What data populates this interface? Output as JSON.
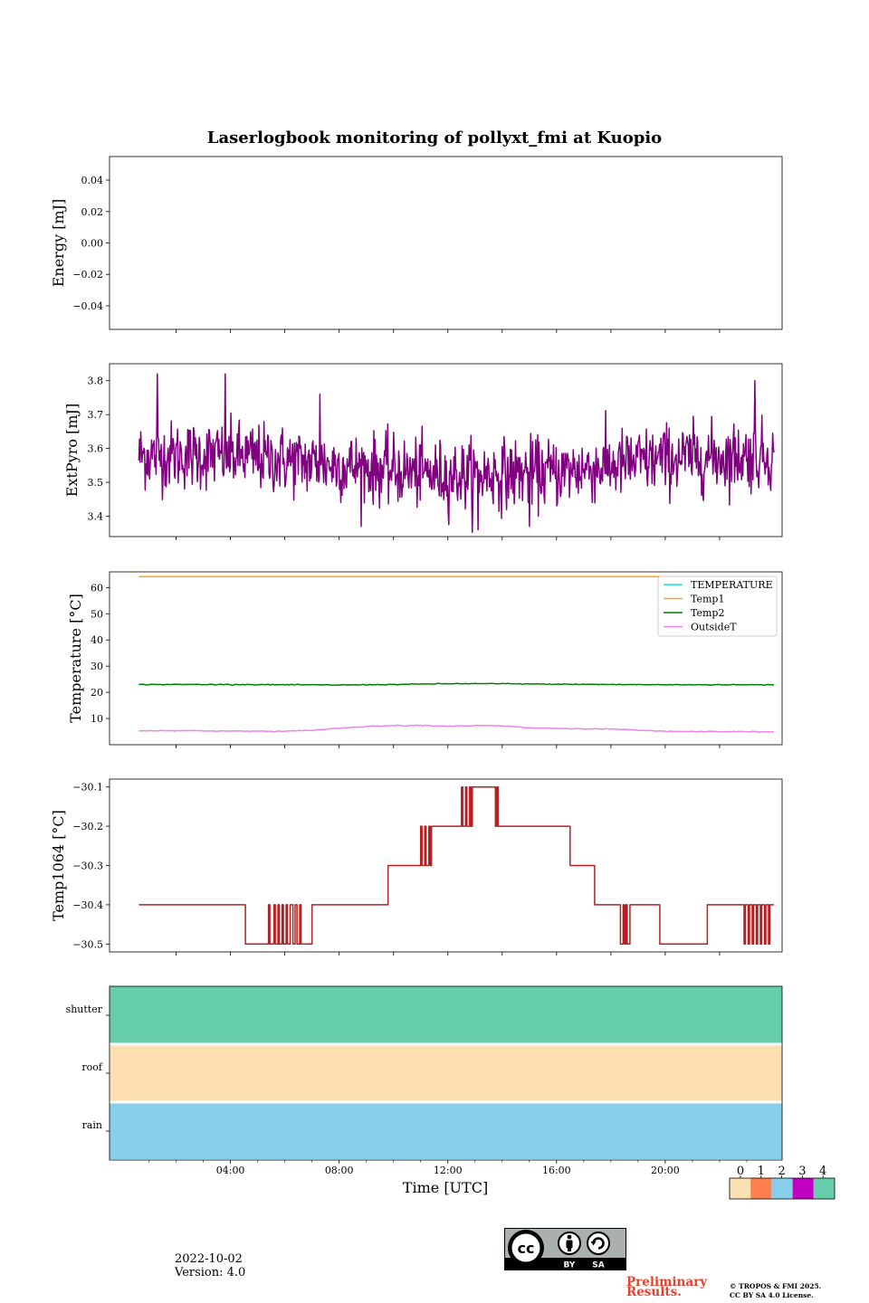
{
  "chart_data": {
    "type": "line",
    "title": "Laserlogbook monitoring of pollyxt_fmi at Kuopio",
    "xlabel": "Time [UTC]",
    "xlim_hours": [
      -0.45,
      24.3
    ],
    "data_x_range_hours": [
      0.63,
      24.0
    ],
    "x_ticks": [
      {
        "h": 4,
        "label": "04:00"
      },
      {
        "h": 8,
        "label": "08:00"
      },
      {
        "h": 12,
        "label": "12:00"
      },
      {
        "h": 16,
        "label": "16:00"
      },
      {
        "h": 20,
        "label": "20:00"
      }
    ],
    "panels": [
      {
        "id": "energy",
        "ylabel": "Energy [mJ]",
        "ylim": [
          -0.055,
          0.055
        ],
        "yticks": [
          -0.04,
          -0.02,
          0.0,
          0.02,
          0.04
        ],
        "ytick_labels": [
          "−0.04",
          "−0.02",
          "0.00",
          "0.02",
          "0.04"
        ],
        "series": []
      },
      {
        "id": "extpyro",
        "ylabel": "ExtPyro [mJ]",
        "ylim": [
          3.34,
          3.85
        ],
        "yticks": [
          3.4,
          3.5,
          3.6,
          3.7,
          3.8
        ],
        "ytick_labels": [
          "3.4",
          "3.5",
          "3.6",
          "3.7",
          "3.8"
        ],
        "series": [
          {
            "name": "ExtPyro",
            "color": "#800080",
            "trend_h": [
              0.63,
              4,
              8,
              12,
              16,
              20,
              24.0
            ],
            "trend_mean": [
              3.58,
              3.58,
              3.55,
              3.52,
              3.53,
              3.57,
              3.58
            ],
            "noise_sd": 0.05,
            "spikes": [
              [
                1.3,
                3.82
              ],
              [
                3.8,
                3.82
              ],
              [
                7.3,
                3.76
              ],
              [
                23.3,
                3.8
              ],
              [
                13.1,
                3.36
              ],
              [
                15.0,
                3.37
              ]
            ]
          }
        ]
      },
      {
        "id": "temperature",
        "ylabel": "Temperature [°C]",
        "ylim": [
          0,
          66
        ],
        "yticks": [
          10,
          20,
          30,
          40,
          50,
          60
        ],
        "ytick_labels": [
          "10",
          "20",
          "30",
          "40",
          "50",
          "60"
        ],
        "legend_position": "upper right",
        "series": [
          {
            "name": "TEMPERATURE",
            "color": "#00e5e5",
            "x": [],
            "y": []
          },
          {
            "name": "Temp1",
            "color": "#ffa500",
            "x": [
              0.63,
              24.0
            ],
            "y": [
              64.2,
              64.2
            ]
          },
          {
            "name": "Temp2",
            "color": "#008000",
            "x": [
              0.63,
              4,
              8,
              10,
              12,
              14,
              16,
              20,
              24.0
            ],
            "y": [
              23.0,
              23.0,
              22.8,
              23.0,
              23.3,
              23.3,
              23.1,
              22.9,
              22.9
            ]
          },
          {
            "name": "OutsideT",
            "color": "#ee82ee",
            "x": [
              0.63,
              2,
              4,
              6,
              7,
              8,
              9,
              10,
              11,
              12,
              13,
              14,
              15,
              16,
              17,
              18,
              19,
              20,
              21,
              22,
              23,
              24.0
            ],
            "y": [
              5.3,
              5.4,
              5.2,
              5.1,
              5.5,
              6.3,
              7.0,
              7.3,
              7.4,
              7.1,
              7.3,
              7.2,
              6.4,
              6.2,
              6.0,
              6.0,
              5.5,
              5.1,
              5.0,
              5.0,
              5.0,
              4.8
            ]
          }
        ]
      },
      {
        "id": "temp1064",
        "ylabel": "Temp1064 [°C]",
        "ylim": [
          -30.52,
          -30.08
        ],
        "yticks": [
          -30.5,
          -30.4,
          -30.3,
          -30.2,
          -30.1
        ],
        "ytick_labels": [
          "−30.5",
          "−30.4",
          "−30.3",
          "−30.2",
          "−30.1"
        ],
        "series": [
          {
            "name": "Temp1064",
            "color": "#b22222",
            "steps": [
              [
                0.63,
                -30.4
              ],
              [
                4.55,
                -30.5
              ],
              [
                5.4,
                -30.4
              ],
              [
                5.45,
                -30.5
              ],
              [
                5.6,
                -30.4
              ],
              [
                5.65,
                -30.5
              ],
              [
                5.75,
                -30.4
              ],
              [
                5.8,
                -30.5
              ],
              [
                5.9,
                -30.4
              ],
              [
                5.95,
                -30.5
              ],
              [
                6.05,
                -30.4
              ],
              [
                6.1,
                -30.5
              ],
              [
                6.2,
                -30.4
              ],
              [
                6.3,
                -30.5
              ],
              [
                6.38,
                -30.4
              ],
              [
                6.45,
                -30.5
              ],
              [
                6.55,
                -30.4
              ],
              [
                6.6,
                -30.5
              ],
              [
                7.0,
                -30.4
              ],
              [
                9.8,
                -30.3
              ],
              [
                11.0,
                -30.2
              ],
              [
                11.05,
                -30.3
              ],
              [
                11.15,
                -30.2
              ],
              [
                11.2,
                -30.3
              ],
              [
                11.3,
                -30.2
              ],
              [
                11.35,
                -30.3
              ],
              [
                11.4,
                -30.2
              ],
              [
                12.5,
                -30.1
              ],
              [
                12.55,
                -30.2
              ],
              [
                12.65,
                -30.1
              ],
              [
                12.7,
                -30.2
              ],
              [
                12.8,
                -30.1
              ],
              [
                12.85,
                -30.2
              ],
              [
                12.9,
                -30.1
              ],
              [
                13.75,
                -30.2
              ],
              [
                13.8,
                -30.1
              ],
              [
                13.85,
                -30.2
              ],
              [
                16.5,
                -30.3
              ],
              [
                17.4,
                -30.4
              ],
              [
                18.35,
                -30.5
              ],
              [
                18.45,
                -30.4
              ],
              [
                18.5,
                -30.5
              ],
              [
                18.55,
                -30.4
              ],
              [
                18.6,
                -30.5
              ],
              [
                18.7,
                -30.4
              ],
              [
                19.8,
                -30.5
              ],
              [
                21.55,
                -30.4
              ],
              [
                22.9,
                -30.5
              ],
              [
                22.95,
                -30.4
              ],
              [
                23.05,
                -30.5
              ],
              [
                23.1,
                -30.4
              ],
              [
                23.2,
                -30.5
              ],
              [
                23.25,
                -30.4
              ],
              [
                23.35,
                -30.5
              ],
              [
                23.4,
                -30.4
              ],
              [
                23.5,
                -30.5
              ],
              [
                23.55,
                -30.4
              ],
              [
                23.65,
                -30.5
              ],
              [
                23.7,
                -30.4
              ],
              [
                23.8,
                -30.5
              ],
              [
                23.85,
                -30.4
              ],
              [
                24.0,
                -30.4
              ]
            ]
          }
        ]
      }
    ],
    "status_panel": {
      "rows": [
        {
          "label": "shutter",
          "value": 4
        },
        {
          "label": "roof",
          "value": 0
        },
        {
          "label": "rain",
          "value": 2
        }
      ]
    },
    "status_colorbar": {
      "ticks": [
        "0",
        "1",
        "2",
        "3",
        "4"
      ],
      "colors": [
        "#fde0b1",
        "#ff7f50",
        "#87ceeb",
        "#c000c0",
        "#66cdaa"
      ]
    }
  },
  "footer": {
    "date": "2022-10-02",
    "version": "Version: 4.0",
    "preliminary_line1": "Preliminary",
    "preliminary_line2": "Results.",
    "copyright_line1": "© TROPOS & FMI 2025.",
    "copyright_line2": "CC BY SA 4.0 License.",
    "license_badge": {
      "by": "BY",
      "sa": "SA"
    }
  }
}
